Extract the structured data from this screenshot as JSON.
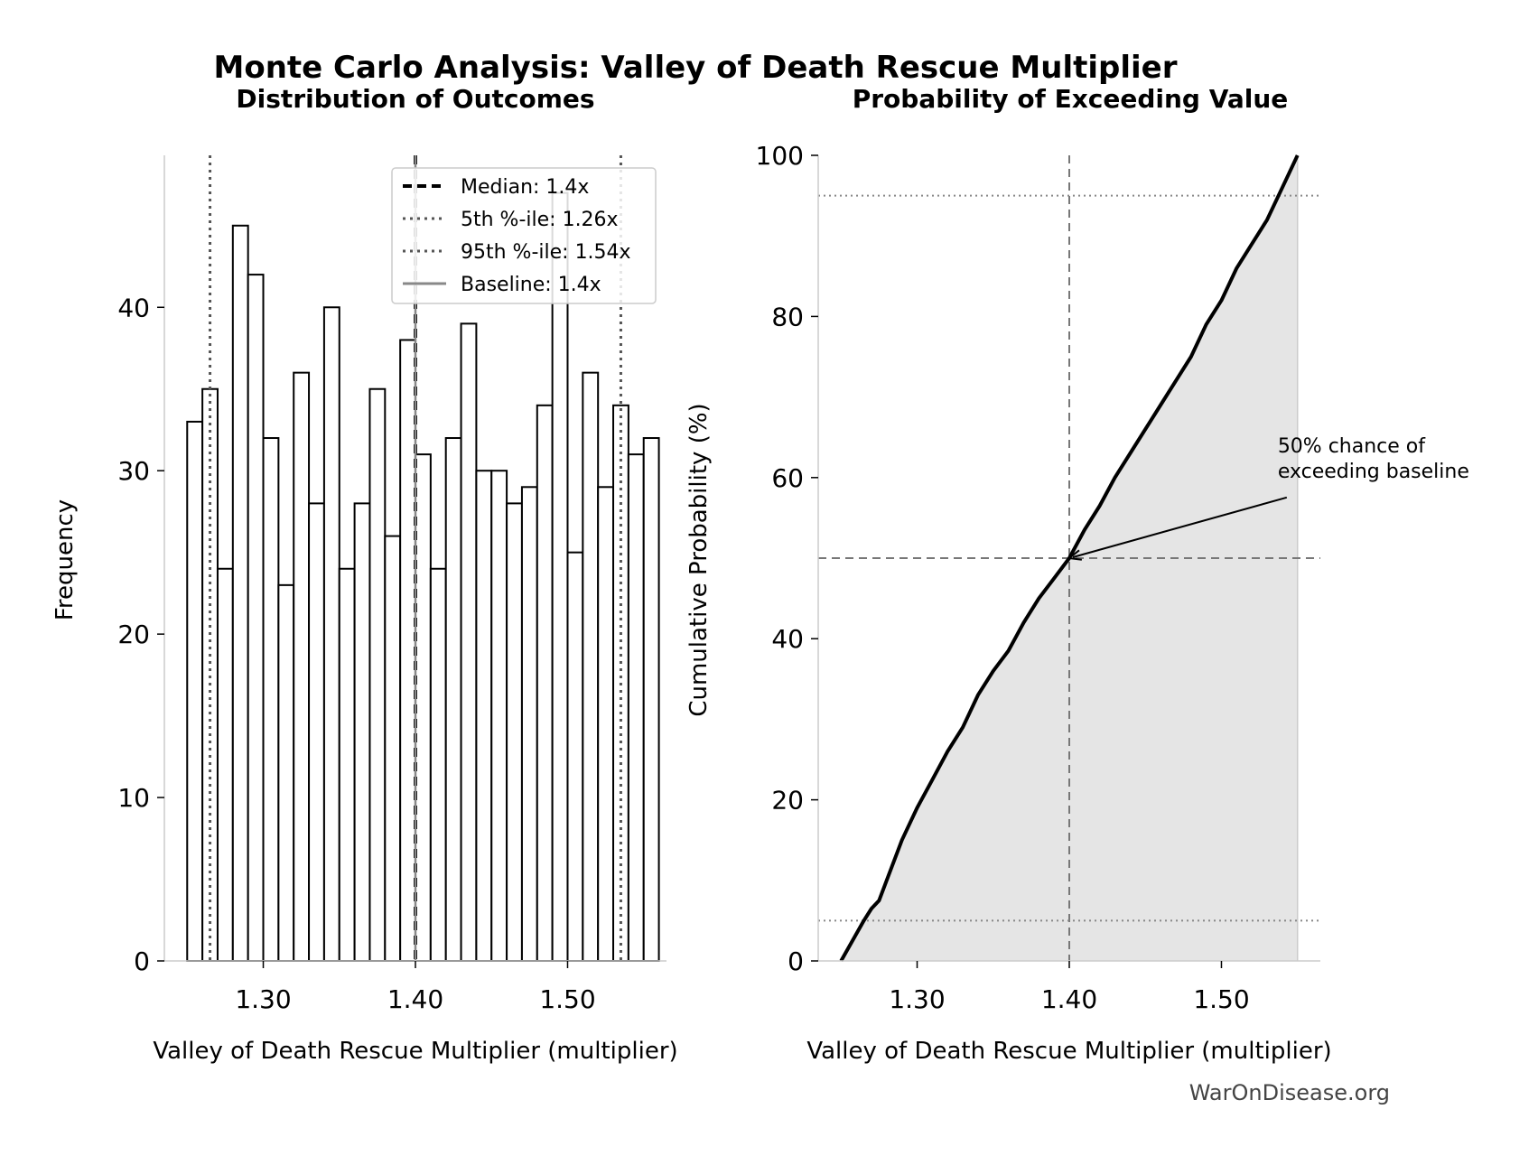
{
  "figure": {
    "title": "Monte Carlo Analysis: Valley of Death Rescue Multiplier",
    "footer": "WarOnDisease.org",
    "colors": {
      "ink": "#000000",
      "fill": "#e5e5e5",
      "reference": "#777777",
      "spine": "#cccccc"
    }
  },
  "chart_data": [
    {
      "type": "bar",
      "subtitle": "Distribution of Outcomes",
      "xlabel": "Valley of Death Rescue Multiplier (multiplier)",
      "ylabel": "Frequency",
      "xlim": [
        1.235,
        1.565
      ],
      "ylim": [
        0,
        49.3
      ],
      "xticks": [
        1.3,
        1.4,
        1.5
      ],
      "xtick_labels": [
        "1.30",
        "1.40",
        "1.50"
      ],
      "yticks": [
        0,
        10,
        20,
        30,
        40
      ],
      "yticks_labels": [
        "0",
        "10",
        "20",
        "30",
        "40"
      ],
      "bin_start": 1.25,
      "bin_width": 0.01,
      "values": [
        33,
        35,
        24,
        45,
        42,
        32,
        23,
        36,
        28,
        40,
        24,
        28,
        35,
        26,
        38,
        31,
        24,
        32,
        39,
        30,
        30,
        28,
        29,
        34,
        47,
        25,
        36,
        29,
        34,
        31,
        32
      ],
      "reference_lines": [
        {
          "label": "Median: 1.4x",
          "x": 1.4,
          "style": "dashed"
        },
        {
          "label": "5th %-ile: 1.26x",
          "x": 1.265,
          "style": "dotted"
        },
        {
          "label": "95th %-ile: 1.54x",
          "x": 1.535,
          "style": "dotted"
        },
        {
          "label": "Baseline: 1.4x",
          "x": 1.4,
          "style": "solid"
        }
      ],
      "legend": "top-right",
      "grid": false
    },
    {
      "type": "area",
      "subtitle": "Probability of Exceeding Value",
      "xlabel": "Valley of Death Rescue Multiplier (multiplier)",
      "ylabel": "Cumulative Probability (%)",
      "xlim": [
        1.235,
        1.565
      ],
      "ylim": [
        0,
        100
      ],
      "xticks": [
        1.3,
        1.4,
        1.5
      ],
      "xtick_labels": [
        "1.30",
        "1.40",
        "1.50"
      ],
      "yticks": [
        0,
        20,
        40,
        60,
        80,
        100
      ],
      "ytick_labels": [
        "0",
        "20",
        "40",
        "60",
        "80",
        "100"
      ],
      "x": [
        1.25,
        1.265,
        1.27,
        1.275,
        1.28,
        1.29,
        1.3,
        1.31,
        1.32,
        1.33,
        1.34,
        1.35,
        1.36,
        1.37,
        1.38,
        1.39,
        1.4,
        1.41,
        1.42,
        1.43,
        1.44,
        1.45,
        1.46,
        1.47,
        1.48,
        1.49,
        1.5,
        1.51,
        1.52,
        1.53,
        1.54,
        1.55
      ],
      "y": [
        0,
        5,
        6.5,
        7.5,
        10,
        15,
        19,
        22.5,
        26,
        29,
        33,
        36,
        38.5,
        42,
        45,
        47.5,
        50,
        53.5,
        56.5,
        60,
        63,
        66,
        69,
        72,
        75,
        79,
        82,
        86,
        89,
        92,
        96,
        100
      ],
      "reference_lines": [
        {
          "axis": "x",
          "value": 1.4,
          "style": "dashed"
        },
        {
          "axis": "y",
          "value": 50,
          "style": "dashed"
        },
        {
          "axis": "y",
          "value": 95,
          "style": "dotted"
        },
        {
          "axis": "y",
          "value": 5,
          "style": "dotted"
        }
      ],
      "annotation": {
        "lines": [
          "50% chance of",
          "exceeding baseline"
        ],
        "target": [
          1.4,
          50
        ],
        "text_pos": [
          1.537,
          60
        ]
      },
      "grid": false
    }
  ]
}
